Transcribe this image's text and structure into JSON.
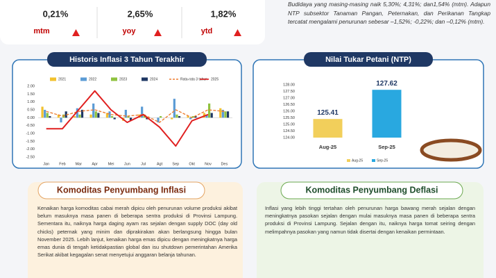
{
  "stats": [
    {
      "value": "0,21%",
      "label": "mtm"
    },
    {
      "value": "2,65%",
      "label": "yoy"
    },
    {
      "value": "1,82%",
      "label": "ytd"
    }
  ],
  "summary": "Budidaya yang masing-masing naik 5,30%; 4,31%; dan1,54% (mtm). Adapun NTP subsektor Tanaman Pangan, Peternakan, dan Perikanan Tangkap tercatat mengalami penurunan sebesar –1,52%; -0,22%; dan –0,12% (mtm).",
  "chart_data": [
    {
      "type": "bar",
      "title": "Historis Inflasi 3 Tahun Terakhir",
      "categories": [
        "Jan",
        "Feb",
        "Mar",
        "Apr",
        "Mei",
        "Jun",
        "Jul",
        "Agt",
        "Sep",
        "Okt",
        "Nov",
        "Des"
      ],
      "series": [
        {
          "name": "2021",
          "color": "#f2c12e",
          "kind": "bar",
          "values": [
            0.7,
            0.2,
            0.1,
            0.2,
            0.3,
            -0.2,
            0.2,
            0.0,
            -0.1,
            0.1,
            0.3,
            0.6
          ]
        },
        {
          "name": "2022",
          "color": "#5b9bd5",
          "kind": "bar",
          "values": [
            0.5,
            -0.3,
            0.6,
            0.9,
            0.4,
            0.5,
            0.7,
            -0.3,
            1.2,
            -0.1,
            0.2,
            0.5
          ]
        },
        {
          "name": "2023",
          "color": "#8fc23f",
          "kind": "bar",
          "values": [
            0.3,
            0.2,
            0.2,
            0.4,
            0.1,
            0.1,
            0.2,
            0.1,
            0.2,
            0.1,
            0.9,
            0.4
          ]
        },
        {
          "name": "2024",
          "color": "#1f3864",
          "kind": "bar",
          "values": [
            0.1,
            0.4,
            0.5,
            0.3,
            -0.1,
            -0.2,
            -0.1,
            0.0,
            0.1,
            0.1,
            0.3,
            0.4
          ]
        },
        {
          "name": "Rata-rata 3 tahun",
          "color": "#ed7d31",
          "kind": "line",
          "dash": true,
          "values": [
            0.4,
            0.1,
            0.4,
            0.5,
            0.2,
            0.1,
            0.2,
            -0.3,
            0.5,
            0.0,
            0.5,
            0.4
          ]
        },
        {
          "name": "2025",
          "color": "#e02020",
          "kind": "line",
          "dash": false,
          "values": [
            -0.7,
            -0.7,
            0.5,
            1.7,
            0.5,
            -0.3,
            0.2,
            -0.6,
            -1.8,
            -0.2,
            0.2,
            null
          ]
        }
      ],
      "ylim": [
        -2.5,
        2.0
      ],
      "yticks": [
        {
          "value": 2,
          "label": "2.00"
        },
        {
          "value": 1.5,
          "label": "1.50"
        },
        {
          "value": 1,
          "label": "1.00"
        },
        {
          "value": 0.5,
          "label": "0.50"
        },
        {
          "value": 0,
          "label": "0.00"
        },
        {
          "value": -0.5,
          "label": "-0.50"
        },
        {
          "value": -1,
          "label": "-1.00"
        },
        {
          "value": -1.5,
          "label": "-1.50"
        },
        {
          "value": -2,
          "label": "-2.00"
        },
        {
          "value": -2.5,
          "label": "-2.50"
        }
      ],
      "grid": false
    },
    {
      "type": "bar",
      "title": "Nilai Tukar Petani (NTP)",
      "categories": [
        "Aug-25",
        "Sep-25"
      ],
      "values": [
        125.41,
        127.62
      ],
      "colors": [
        "#f2cf5b",
        "#29a8e0"
      ],
      "ylim": [
        124,
        128
      ],
      "yticks": [
        {
          "value": 124,
          "label": "124.00"
        },
        {
          "value": 124.5,
          "label": "124.50"
        },
        {
          "value": 125,
          "label": "125.00"
        },
        {
          "value": 125.5,
          "label": "125.50"
        },
        {
          "value": 126,
          "label": "126.00"
        },
        {
          "value": 126.5,
          "label": "126.50"
        },
        {
          "value": 127,
          "label": "127.00"
        },
        {
          "value": 127.5,
          "label": "127.50"
        },
        {
          "value": 128,
          "label": "128.00"
        }
      ],
      "grid": false
    }
  ],
  "sections": [
    {
      "title": "Komoditas Penyumbang Inflasi",
      "text": "Kenaikan harga komoditas cabai merah dipicu oleh penurunan volume produksi akibat belum masuknya masa panen di beberapa sentra produksi di Provinsi Lampung. Sementara itu, naiknya harga daging ayam ras sejalan dengan supply DOC (day old chicks) peternak yang minim dan diprakirakan akan berlangsung hingga bulan November 2025. Lebih lanjut, kenaikan harga emas dipicu dengan meningkatnya harga emas dunia di tengah ketidakpastian global dan isu shutdown pemerintahan Amerika Serikat akibat kegagalan senat menyetujui anggaran belanja tahunan."
    },
    {
      "title": "Komoditas Penyumbang Deflasi",
      "text": "Inflasi yang lebih tinggi tertahan oleh penurunan harga bawang merah sejalan dengan meningkatnya pasokan sejalan dengan mulai masuknya masa panen di beberapa sentra produksi di Provinsi Lampung. Sejalan dengan itu, naiknya harga tomat seiring dengan melimpahnya pasokan yang namun tidak disertai dengan kenaikan permintaan."
    }
  ]
}
